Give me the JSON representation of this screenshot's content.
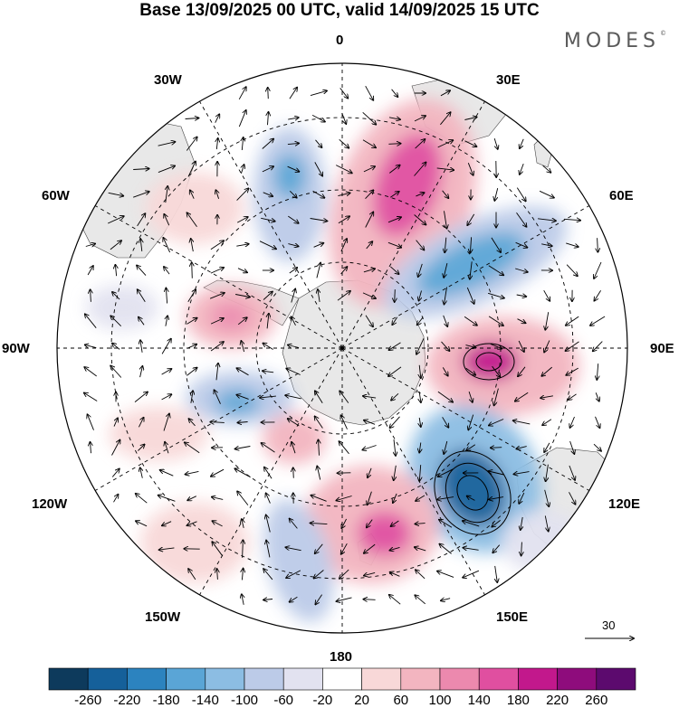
{
  "title": "Base 13/09/2025 00 UTC, valid 14/09/2025 15 UTC",
  "brand": "MODES",
  "brand_mark": "©",
  "map_labels": {
    "top": "0",
    "bottom": "180",
    "left": "90W",
    "right": "90E",
    "nw_top": "30W",
    "ne_top": "30E",
    "nw_side": "60W",
    "ne_side": "60E",
    "sw_side": "120W",
    "se_side": "120E",
    "sw_bottom": "150W",
    "se_bottom": "150E"
  },
  "reference_vector": {
    "label": "30"
  },
  "colorbar": {
    "ticks": [
      "-260",
      "-220",
      "-180",
      "-140",
      "-100",
      "-60",
      "-20",
      "20",
      "60",
      "100",
      "140",
      "180",
      "220",
      "260"
    ],
    "colors": [
      "#0d3a5c",
      "#15609a",
      "#2c83bf",
      "#5aa5d6",
      "#8cbde3",
      "#bccbe8",
      "#e2e2f0",
      "#ffffff",
      "#f8d8d8",
      "#f3b5c0",
      "#ec89ae",
      "#e04fa0",
      "#c2188c",
      "#8e0c7c",
      "#5c0a6e"
    ]
  },
  "anomalies": [
    {
      "name": "pos-atlantic",
      "value": 150
    },
    {
      "name": "neg-indian",
      "value": -150
    },
    {
      "name": "pos-90e",
      "value": 200
    },
    {
      "name": "neg-120e",
      "value": -260
    },
    {
      "name": "pos-170e",
      "value": 150
    },
    {
      "name": "neg-150w",
      "value": -110
    },
    {
      "name": "neg-20w",
      "value": -140
    },
    {
      "name": "pos-70w",
      "value": 120
    },
    {
      "name": "neg-100w",
      "value": -140
    },
    {
      "name": "pos-130w",
      "value": 120
    }
  ]
}
